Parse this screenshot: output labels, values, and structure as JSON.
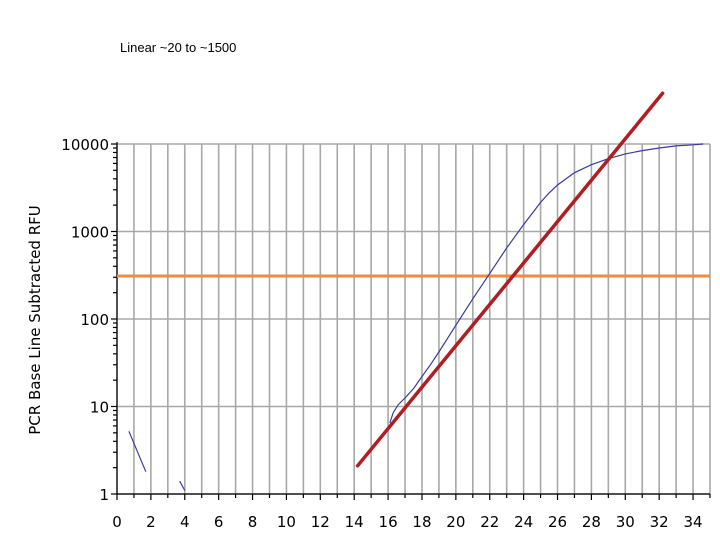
{
  "chart_data": {
    "type": "line",
    "annotation": "Linear ~20 to ~1500",
    "ylabel": "PCR Base Line Subtracted RFU",
    "xlabel": "",
    "x_range": [
      0,
      35
    ],
    "y_range": [
      1,
      10000
    ],
    "y_scale": "log",
    "x_ticks": [
      0,
      2,
      4,
      6,
      8,
      10,
      12,
      14,
      16,
      18,
      20,
      22,
      24,
      26,
      28,
      30,
      32,
      34
    ],
    "x_tick_labels": [
      "0",
      "2",
      "4",
      "6",
      "8",
      "10",
      "12",
      "14",
      "16",
      "18",
      "20",
      "22",
      "24",
      "26",
      "28",
      "30",
      "32",
      "34"
    ],
    "y_ticks": [
      1,
      10,
      100,
      1000,
      10000
    ],
    "y_tick_labels": [
      "1",
      "10",
      "100",
      "1000",
      "10000"
    ],
    "grid": true,
    "series": [
      {
        "color": "#3a3aa0",
        "segments": [
          [
            [
              0.7,
              5.2
            ],
            [
              1.7,
              1.8
            ]
          ],
          [
            [
              3.7,
              1.4
            ],
            [
              4.0,
              1.1
            ]
          ],
          [
            [
              16.1,
              6.5
            ],
            [
              16.3,
              8.5
            ],
            [
              16.6,
              10.5
            ],
            [
              17.0,
              12.5
            ],
            [
              17.5,
              16
            ],
            [
              18.0,
              22
            ],
            [
              18.5,
              30
            ],
            [
              19.0,
              42
            ],
            [
              20.0,
              85
            ],
            [
              21.0,
              170
            ],
            [
              22.0,
              330
            ],
            [
              23.0,
              650
            ],
            [
              24.0,
              1200
            ],
            [
              25.0,
              2150
            ],
            [
              25.5,
              2750
            ],
            [
              26.0,
              3400
            ],
            [
              27.0,
              4700
            ],
            [
              28.0,
              5800
            ],
            [
              29.0,
              6800
            ],
            [
              30.0,
              7700
            ],
            [
              31.0,
              8400
            ],
            [
              32.0,
              9000
            ],
            [
              33.0,
              9500
            ],
            [
              34.0,
              9800
            ],
            [
              34.6,
              10000
            ]
          ]
        ]
      }
    ],
    "threshold": {
      "y": 310,
      "color": "#f08c3c"
    },
    "fit_line": {
      "points": [
        [
          14.2,
          2.1
        ],
        [
          32.2,
          38000
        ]
      ],
      "color": "#b01e22"
    }
  }
}
